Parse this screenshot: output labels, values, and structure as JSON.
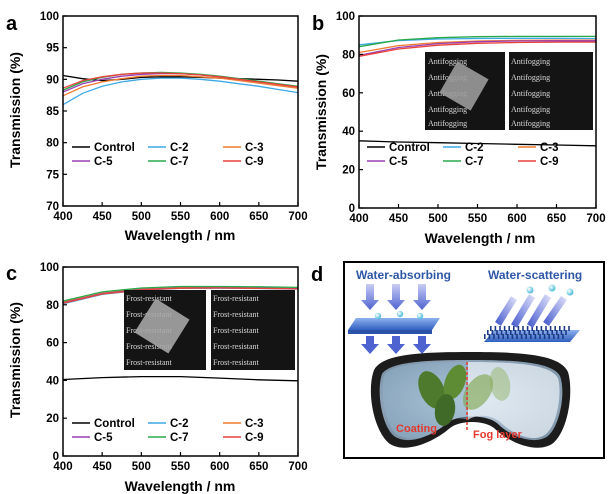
{
  "chart_data": [
    {
      "id": "a",
      "panel_letter": "a",
      "type": "line",
      "xlabel": "Wavelength / nm",
      "ylabel": "Transmission (%)",
      "xlim": [
        400,
        700
      ],
      "ylim": [
        70,
        100
      ],
      "xticks": [
        400,
        450,
        500,
        550,
        600,
        650,
        700
      ],
      "yticks": [
        70,
        75,
        80,
        85,
        90,
        95,
        100
      ],
      "legend": [
        "Control",
        "C-2",
        "C-3",
        "C-5",
        "C-7",
        "C-9"
      ],
      "series": [
        {
          "name": "Control",
          "color": "#000000",
          "x": [
            400,
            425,
            450,
            475,
            500,
            525,
            550,
            575,
            600,
            625,
            650,
            675,
            700
          ],
          "y": [
            90.6,
            90.1,
            89.8,
            90.0,
            90.3,
            90.4,
            90.4,
            90.3,
            90.2,
            90.1,
            90.0,
            89.9,
            89.7
          ]
        },
        {
          "name": "C-2",
          "color": "#3fa9e6",
          "x": [
            400,
            425,
            450,
            475,
            500,
            525,
            550,
            575,
            600,
            625,
            650,
            675,
            700
          ],
          "y": [
            86.0,
            87.8,
            88.9,
            89.6,
            90.0,
            90.2,
            90.2,
            90.0,
            89.7,
            89.3,
            88.9,
            88.4,
            87.9
          ]
        },
        {
          "name": "C-3",
          "color": "#f07a2e",
          "x": [
            400,
            425,
            450,
            475,
            500,
            525,
            550,
            575,
            600,
            625,
            650,
            675,
            700
          ],
          "y": [
            87.4,
            88.8,
            89.6,
            90.1,
            90.5,
            90.6,
            90.6,
            90.4,
            90.2,
            89.8,
            89.4,
            89.0,
            88.6
          ]
        },
        {
          "name": "C-5",
          "color": "#9b3fb5",
          "x": [
            400,
            425,
            450,
            475,
            500,
            525,
            550,
            575,
            600,
            625,
            650,
            675,
            700
          ],
          "y": [
            88.0,
            89.3,
            90.0,
            90.5,
            90.8,
            90.9,
            90.9,
            90.7,
            90.4,
            90.0,
            89.6,
            89.2,
            88.8
          ]
        },
        {
          "name": "C-7",
          "color": "#2aa84a",
          "x": [
            400,
            425,
            450,
            475,
            500,
            525,
            550,
            575,
            600,
            625,
            650,
            675,
            700
          ],
          "y": [
            88.3,
            89.6,
            90.3,
            90.8,
            91.0,
            91.1,
            91.0,
            90.8,
            90.5,
            90.1,
            89.7,
            89.3,
            88.9
          ]
        },
        {
          "name": "C-9",
          "color": "#e8423a",
          "x": [
            400,
            425,
            450,
            475,
            500,
            525,
            550,
            575,
            600,
            625,
            650,
            675,
            700
          ],
          "y": [
            88.6,
            89.8,
            90.4,
            90.8,
            91.0,
            91.0,
            90.9,
            90.7,
            90.4,
            90.0,
            89.6,
            89.2,
            88.8
          ]
        }
      ]
    },
    {
      "id": "b",
      "panel_letter": "b",
      "type": "line",
      "xlabel": "Wavelength / nm",
      "ylabel": "Transmission (%)",
      "xlim": [
        400,
        700
      ],
      "ylim": [
        0,
        100
      ],
      "xticks": [
        400,
        450,
        500,
        550,
        600,
        650,
        700
      ],
      "yticks": [
        0,
        20,
        40,
        60,
        80,
        100
      ],
      "legend": [
        "Control",
        "C-2",
        "C-3",
        "C-5",
        "C-7",
        "C-9"
      ],
      "inset_text": [
        "Antifogging",
        "Antifogging",
        "Antifogging",
        "Antifogging",
        "Antifogging",
        "Antifogging"
      ],
      "series": [
        {
          "name": "Control",
          "color": "#000000",
          "x": [
            400,
            450,
            500,
            550,
            600,
            650,
            700
          ],
          "y": [
            35.0,
            34.4,
            34.0,
            33.6,
            33.2,
            32.8,
            32.4
          ]
        },
        {
          "name": "C-2",
          "color": "#3fa9e6",
          "x": [
            400,
            450,
            500,
            550,
            600,
            650,
            700
          ],
          "y": [
            85.0,
            87.2,
            88.0,
            88.3,
            88.4,
            88.4,
            88.3
          ]
        },
        {
          "name": "C-3",
          "color": "#f07a2e",
          "x": [
            400,
            450,
            500,
            550,
            600,
            650,
            700
          ],
          "y": [
            81.0,
            84.6,
            86.2,
            87.0,
            87.3,
            87.4,
            87.4
          ]
        },
        {
          "name": "C-5",
          "color": "#9b3fb5",
          "x": [
            400,
            450,
            500,
            550,
            600,
            650,
            700
          ],
          "y": [
            79.5,
            83.6,
            85.6,
            86.6,
            87.0,
            87.1,
            87.1
          ]
        },
        {
          "name": "C-7",
          "color": "#2aa84a",
          "x": [
            400,
            450,
            500,
            550,
            600,
            650,
            700
          ],
          "y": [
            84.0,
            87.5,
            88.7,
            89.2,
            89.4,
            89.4,
            89.4
          ]
        },
        {
          "name": "C-9",
          "color": "#e8423a",
          "x": [
            400,
            450,
            500,
            550,
            600,
            650,
            700
          ],
          "y": [
            79.0,
            82.8,
            84.8,
            85.8,
            86.2,
            86.4,
            86.4
          ]
        }
      ]
    },
    {
      "id": "c",
      "panel_letter": "c",
      "type": "line",
      "xlabel": "Wavelength / nm",
      "ylabel": "Transmission (%)",
      "xlim": [
        400,
        700
      ],
      "ylim": [
        0,
        100
      ],
      "xticks": [
        400,
        450,
        500,
        550,
        600,
        650,
        700
      ],
      "yticks": [
        0,
        20,
        40,
        60,
        80,
        100
      ],
      "legend": [
        "Control",
        "C-2",
        "C-3",
        "C-5",
        "C-7",
        "C-9"
      ],
      "inset_text": [
        "Frost-resistant",
        "Frost-resistant",
        "Frost-resistant",
        "Frost-resistant",
        "Frost-resistant",
        "Frost-resistant"
      ],
      "series": [
        {
          "name": "Control",
          "color": "#000000",
          "x": [
            400,
            450,
            500,
            550,
            600,
            650,
            700
          ],
          "y": [
            40.5,
            41.5,
            42.0,
            42.0,
            41.2,
            40.3,
            39.8
          ]
        },
        {
          "name": "C-2",
          "color": "#3fa9e6",
          "x": [
            400,
            450,
            500,
            550,
            600,
            650,
            700
          ],
          "y": [
            80.5,
            85.5,
            87.8,
            88.7,
            88.8,
            88.6,
            88.3
          ]
        },
        {
          "name": "C-3",
          "color": "#f07a2e",
          "x": [
            400,
            450,
            500,
            550,
            600,
            650,
            700
          ],
          "y": [
            81.5,
            86.2,
            88.4,
            89.2,
            89.2,
            89.0,
            88.7
          ]
        },
        {
          "name": "C-5",
          "color": "#9b3fb5",
          "x": [
            400,
            450,
            500,
            550,
            600,
            650,
            700
          ],
          "y": [
            81.0,
            85.9,
            88.1,
            88.9,
            89.0,
            88.8,
            88.5
          ]
        },
        {
          "name": "C-7",
          "color": "#2aa84a",
          "x": [
            400,
            450,
            500,
            550,
            600,
            650,
            700
          ],
          "y": [
            82.0,
            86.8,
            88.9,
            89.7,
            89.7,
            89.5,
            89.2
          ]
        },
        {
          "name": "C-9",
          "color": "#e8423a",
          "x": [
            400,
            450,
            500,
            550,
            600,
            650,
            700
          ],
          "y": [
            80.8,
            85.7,
            87.9,
            88.8,
            88.9,
            88.7,
            88.4
          ]
        }
      ]
    }
  ],
  "diagram": {
    "panel_letter": "d",
    "left_title": "Water-absorbing",
    "right_title": "Water-scattering",
    "coating_label": "Coating",
    "fog_label": "Fog layer",
    "colors": {
      "title": "#2e56a7",
      "arrow": "#5b6fd6",
      "label": "#e63a2e",
      "film": "#4a78d0"
    }
  }
}
